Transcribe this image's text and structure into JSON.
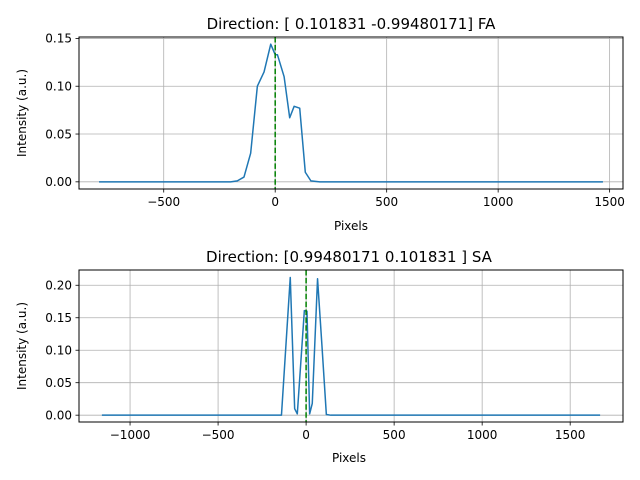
{
  "chart_data": [
    {
      "type": "line",
      "title": "Direction: [ 0.101831   -0.99480171] FA",
      "xlabel": "Pixels",
      "ylabel": "Intensity (a.u.)",
      "xlim": [
        -880,
        1560
      ],
      "ylim": [
        -0.0075,
        0.1515
      ],
      "xticks": [
        -500,
        0,
        500,
        1000,
        1500
      ],
      "xtick_labels": [
        "−500",
        "0",
        "500",
        "1000",
        "1500"
      ],
      "yticks": [
        0.0,
        0.05,
        0.1,
        0.15
      ],
      "ytick_labels": [
        "0.00",
        "0.05",
        "0.10",
        "0.15"
      ],
      "grid": true,
      "series": [
        {
          "color": "#1f77b4",
          "x": [
            -790,
            -200,
            -170,
            -140,
            -110,
            -80,
            -50,
            -20,
            0,
            10,
            40,
            65,
            85,
            110,
            135,
            160,
            200,
            1470
          ],
          "y": [
            0.0,
            0.0,
            0.001,
            0.005,
            0.03,
            0.1,
            0.115,
            0.144,
            0.133,
            0.133,
            0.11,
            0.067,
            0.079,
            0.077,
            0.01,
            0.001,
            0.0,
            0.0
          ]
        }
      ],
      "vline": {
        "x": 0,
        "color": "#008000",
        "style": "dashed"
      }
    },
    {
      "type": "line",
      "title": "Direction: [0.99480171 0.101831  ] SA",
      "xlabel": "Pixels",
      "ylabel": "Intensity (a.u.)",
      "xlim": [
        -1290,
        1800
      ],
      "ylim": [
        -0.0105,
        0.2235
      ],
      "xticks": [
        -1000,
        -500,
        0,
        500,
        1000,
        1500
      ],
      "xtick_labels": [
        "−1000",
        "−500",
        "0",
        "500",
        "1000",
        "1500"
      ],
      "yticks": [
        0.0,
        0.05,
        0.1,
        0.15,
        0.2
      ],
      "ytick_labels": [
        "0.00",
        "0.05",
        "0.10",
        "0.15",
        "0.20"
      ],
      "grid": true,
      "series": [
        {
          "color": "#1f77b4",
          "x": [
            -1160,
            -140,
            -90,
            -65,
            -50,
            -10,
            5,
            20,
            35,
            65,
            90,
            115,
            140,
            1670
          ],
          "y": [
            0.0,
            0.0,
            0.212,
            0.01,
            0.002,
            0.161,
            0.16,
            0.002,
            0.018,
            0.21,
            0.107,
            0.001,
            0.0,
            0.0
          ]
        }
      ],
      "vline": {
        "x": 0,
        "color": "#008000",
        "style": "dashed"
      }
    }
  ]
}
